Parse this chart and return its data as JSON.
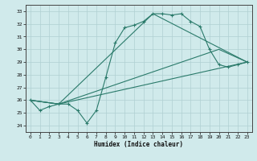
{
  "background_color": "#d0eaeb",
  "grid_color": "#b0d0d2",
  "line_color": "#2a7a6a",
  "xlabel": "Humidex (Indice chaleur)",
  "ylabel_ticks": [
    24,
    25,
    26,
    27,
    28,
    29,
    30,
    31,
    32,
    33
  ],
  "xlim": [
    -0.5,
    23.5
  ],
  "ylim": [
    23.5,
    33.5
  ],
  "xticks": [
    0,
    1,
    2,
    3,
    4,
    5,
    6,
    7,
    8,
    9,
    10,
    11,
    12,
    13,
    14,
    15,
    16,
    17,
    18,
    19,
    20,
    21,
    22,
    23
  ],
  "line_main": {
    "x": [
      0,
      1,
      2,
      3,
      4,
      5,
      6,
      7,
      8,
      9,
      10,
      11,
      12,
      13,
      14,
      15,
      16,
      17,
      18,
      19,
      20,
      21,
      22,
      23
    ],
    "y": [
      26.0,
      25.2,
      25.5,
      25.7,
      25.7,
      25.2,
      24.2,
      25.2,
      27.8,
      30.5,
      31.7,
      31.9,
      32.2,
      32.8,
      32.8,
      32.7,
      32.8,
      32.2,
      31.8,
      30.0,
      28.8,
      28.6,
      28.8,
      29.0
    ]
  },
  "line2": {
    "x": [
      0,
      3,
      13,
      23
    ],
    "y": [
      26.0,
      25.7,
      32.8,
      29.0
    ]
  },
  "line3": {
    "x": [
      0,
      3,
      20,
      23
    ],
    "y": [
      26.0,
      25.7,
      30.0,
      29.0
    ]
  },
  "line4": {
    "x": [
      0,
      3,
      23
    ],
    "y": [
      26.0,
      25.7,
      29.0
    ]
  }
}
